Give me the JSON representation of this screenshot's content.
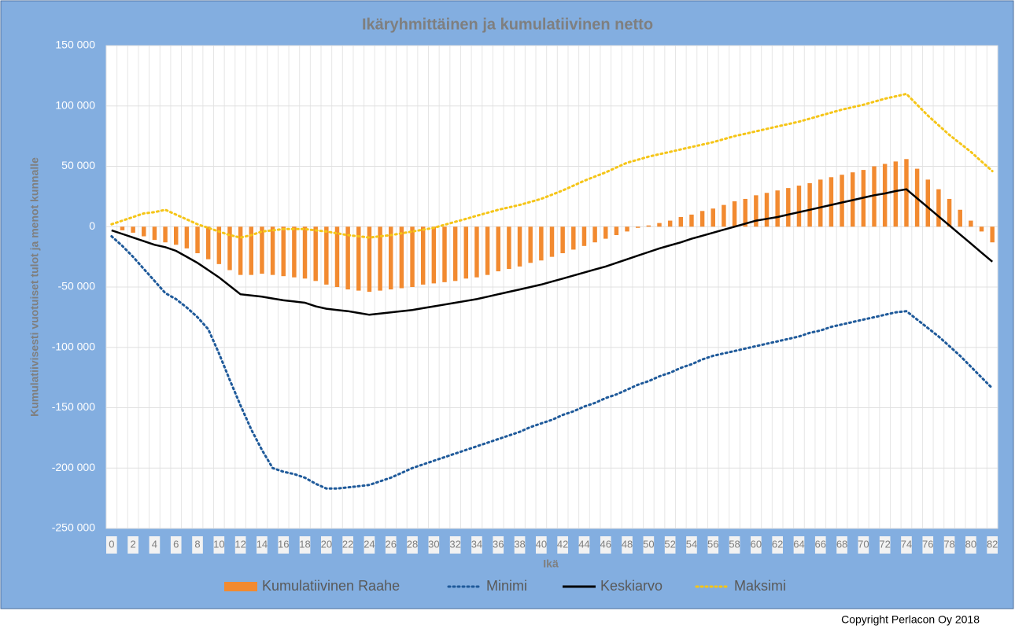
{
  "chart_data": {
    "type": "combo",
    "title": "Ikäryhmittäinen ja kumulatiivinen netto",
    "x_label": "Ikä",
    "y_label": "Kumulatiivisesti vuotuiset tulot ja menot kunnalle",
    "copyright": "Copyright Perlacon Oy 2018",
    "categories": [
      "0",
      null,
      "2",
      null,
      "4",
      null,
      "6",
      null,
      "8",
      null,
      "10",
      null,
      "12",
      null,
      "14",
      null,
      "16",
      null,
      "18",
      null,
      "20",
      null,
      "22",
      null,
      "24",
      null,
      "26",
      null,
      "28",
      null,
      "30",
      null,
      "32",
      null,
      "34",
      null,
      "36",
      null,
      "38",
      null,
      "40",
      null,
      "42",
      null,
      "44",
      null,
      "46",
      null,
      "48",
      null,
      "50",
      null,
      "52",
      null,
      "54",
      null,
      "56",
      null,
      "58",
      null,
      "60",
      null,
      "62",
      null,
      "64",
      null,
      "66",
      null,
      "68",
      null,
      "70",
      null,
      "72",
      null,
      "74",
      null,
      "76",
      null,
      "78",
      null,
      "80",
      null,
      "82"
    ],
    "ylim": [
      -250000,
      150000
    ],
    "yticks": [
      {
        "value": -250000,
        "label": "-250 000"
      },
      {
        "value": -200000,
        "label": "-200 000"
      },
      {
        "value": -150000,
        "label": "-150 000"
      },
      {
        "value": -100000,
        "label": "-100 000"
      },
      {
        "value": -50000,
        "label": "-50 000"
      },
      0,
      {
        "value": 50000,
        "label": "50 000"
      },
      {
        "value": 100000,
        "label": "100 000"
      },
      {
        "value": 150000,
        "label": "150 000"
      }
    ],
    "grid": true,
    "legend": "bottom",
    "series": [
      {
        "name": "Kumulatiivinen Raahe",
        "type": "bar",
        "color": "#f28a30",
        "values": [
          0,
          -3000,
          -5000,
          -8000,
          -11000,
          -13000,
          -15000,
          -18000,
          -22000,
          -27000,
          -31000,
          -36000,
          -40000,
          -40000,
          -39000,
          -40000,
          -41000,
          -42000,
          -43000,
          -45000,
          -48000,
          -50000,
          -52000,
          -53000,
          -54000,
          -53000,
          -52000,
          -51000,
          -50000,
          -48000,
          -47000,
          -46000,
          -45000,
          -43000,
          -42000,
          -40000,
          -37000,
          -35000,
          -33000,
          -30000,
          -28000,
          -25000,
          -22000,
          -19000,
          -16000,
          -13000,
          -10000,
          -7000,
          -4000,
          -1000,
          1000,
          3000,
          5000,
          8000,
          10000,
          13000,
          15000,
          18000,
          21000,
          23000,
          26000,
          28000,
          30000,
          32000,
          34000,
          36000,
          39000,
          41000,
          43000,
          45000,
          47000,
          50000,
          52000,
          54000,
          56000,
          48000,
          39000,
          31000,
          23000,
          14000,
          5000,
          -4000,
          -13000
        ]
      },
      {
        "name": "Minimi",
        "type": "line",
        "style": "dotted",
        "color": "#1f5a9a",
        "values": [
          -8000,
          -16000,
          -25000,
          -35000,
          -45000,
          -55000,
          -60000,
          -67000,
          -75000,
          -85000,
          -105000,
          -127000,
          -148000,
          -168000,
          -185000,
          -200000,
          -203000,
          -205000,
          -208000,
          -213000,
          -217000,
          -217000,
          -216000,
          -215000,
          -214000,
          -211000,
          -208000,
          -204000,
          -200000,
          -197000,
          -194000,
          -191000,
          -188000,
          -185000,
          -182000,
          -179000,
          -176000,
          -173000,
          -170000,
          -166000,
          -163000,
          -160000,
          -156000,
          -153000,
          -149000,
          -146000,
          -142000,
          -139000,
          -135000,
          -131000,
          -128000,
          -124000,
          -121000,
          -117000,
          -114000,
          -110000,
          -107000,
          -105000,
          -103000,
          -101000,
          -99000,
          -97000,
          -95000,
          -93000,
          -91000,
          -88000,
          -86000,
          -83000,
          -81000,
          -79000,
          -77000,
          -75000,
          -73000,
          -71000,
          -70000,
          -77000,
          -84000,
          -91000,
          -99000,
          -107000,
          -116000,
          -125000,
          -134000
        ]
      },
      {
        "name": "Keskiarvo",
        "type": "line",
        "style": "solid",
        "color": "#000000",
        "values": [
          -3000,
          -6000,
          -9000,
          -12000,
          -15000,
          -17000,
          -20000,
          -25000,
          -30000,
          -36000,
          -42000,
          -49000,
          -56000,
          -57000,
          -58000,
          -59500,
          -61000,
          -62000,
          -63000,
          -66000,
          -68000,
          -69000,
          -70000,
          -71500,
          -73000,
          -72000,
          -71000,
          -70000,
          -69000,
          -67500,
          -66000,
          -64500,
          -63000,
          -61500,
          -60000,
          -58000,
          -56000,
          -54000,
          -52000,
          -50000,
          -48000,
          -45500,
          -43000,
          -40500,
          -38000,
          -35500,
          -33000,
          -30000,
          -27000,
          -24000,
          -21000,
          -18000,
          -15500,
          -13000,
          -10000,
          -7500,
          -5000,
          -2500,
          0,
          2500,
          5000,
          6500,
          8000,
          10000,
          12000,
          14000,
          16000,
          18000,
          20000,
          22000,
          24000,
          26000,
          27500,
          29500,
          31000,
          23500,
          16000,
          8500,
          1000,
          -6500,
          -14000,
          -21500,
          -29000
        ]
      },
      {
        "name": "Maksimi",
        "type": "line",
        "style": "dotted",
        "color": "#f5c518",
        "values": [
          2000,
          5000,
          8000,
          11000,
          12000,
          14000,
          10000,
          6000,
          2000,
          -1000,
          -4000,
          -7000,
          -9000,
          -7000,
          -4000,
          -3000,
          -2000,
          -2000,
          -2000,
          -3000,
          -4000,
          -5500,
          -7000,
          -8000,
          -9000,
          -8000,
          -7000,
          -5500,
          -4000,
          -2500,
          -1000,
          1500,
          4000,
          6500,
          9000,
          11500,
          14000,
          16000,
          18000,
          20500,
          23000,
          26500,
          30000,
          34000,
          38000,
          41500,
          45000,
          49000,
          53000,
          55500,
          58000,
          60000,
          62000,
          64000,
          66000,
          68000,
          70000,
          72500,
          75000,
          77000,
          79000,
          81000,
          83000,
          85000,
          87000,
          89500,
          92000,
          94500,
          97000,
          99000,
          101000,
          103500,
          106000,
          108000,
          110000,
          101000,
          92000,
          84000,
          76000,
          69000,
          62000,
          54000,
          46000
        ]
      }
    ]
  }
}
